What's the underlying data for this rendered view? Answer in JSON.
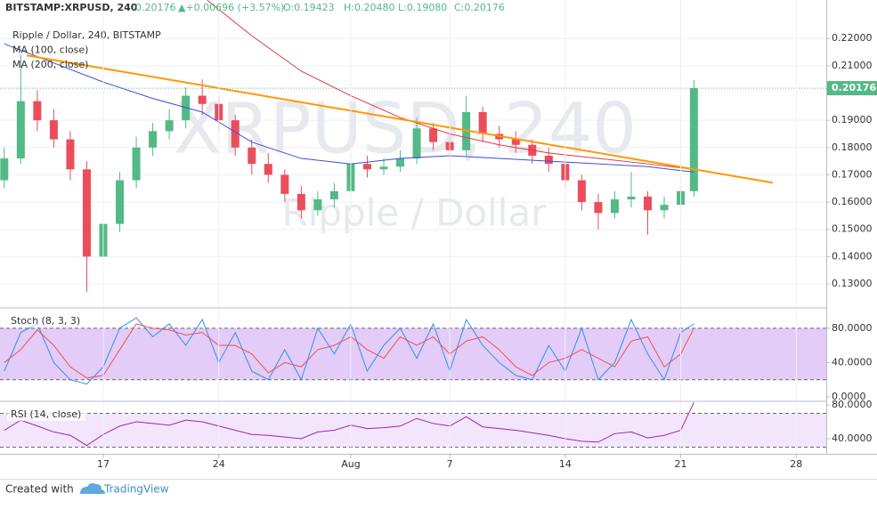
{
  "header": {
    "symbol": "BITSTAMP:XRPUSD, 240",
    "last": "0.20176",
    "change": "▲+0.00696 (+3.57%)",
    "open": "O:0.19423",
    "high": "H:0.20480",
    "low": "L:0.19080",
    "close": "C:0.20176"
  },
  "footer": {
    "created": "Created with",
    "brand": "TradingView"
  },
  "chart_data": [
    {
      "type": "candlestick",
      "legend_title": "Ripple / Dollar, 240, BITSTAMP",
      "watermark": [
        "XRPUSD, 240",
        "Ripple / Dollar"
      ],
      "up_color": "#53b987",
      "down_color": "#eb4d5c",
      "grid": true,
      "xlim": [
        10.74,
        60.82
      ],
      "ylim": [
        0.1212,
        0.2341
      ],
      "yticks": [
        {
          "value": 0.13,
          "label": "0.13000"
        },
        {
          "value": 0.14,
          "label": "0.14000"
        },
        {
          "value": 0.15,
          "label": "0.15000"
        },
        {
          "value": 0.16,
          "label": "0.16000"
        },
        {
          "value": 0.17,
          "label": "0.17000"
        },
        {
          "value": 0.18,
          "label": "0.18000"
        },
        {
          "value": 0.19,
          "label": "0.19000"
        },
        {
          "value": 0.21,
          "label": "0.21000"
        },
        {
          "value": 0.22,
          "label": "0.22000"
        }
      ],
      "x": [
        11,
        12,
        13,
        14,
        15,
        16,
        17,
        18,
        19,
        20,
        21,
        22,
        23,
        24,
        25,
        26,
        27,
        28,
        29,
        30,
        31,
        32,
        33,
        34,
        35,
        36,
        37,
        38,
        39,
        40,
        41,
        42,
        43,
        44,
        45,
        46,
        47,
        48,
        49,
        50,
        51,
        52,
        52.8
      ],
      "open": [
        0.168,
        0.176,
        0.197,
        0.19,
        0.183,
        0.172,
        0.14,
        0.152,
        0.168,
        0.18,
        0.186,
        0.19,
        0.199,
        0.196,
        0.19,
        0.18,
        0.174,
        0.17,
        0.163,
        0.157,
        0.161,
        0.164,
        0.174,
        0.172,
        0.173,
        0.176,
        0.187,
        0.182,
        0.179,
        0.193,
        0.185,
        0.183,
        0.181,
        0.177,
        0.174,
        0.168,
        0.16,
        0.156,
        0.161,
        0.162,
        0.157,
        0.159,
        0.164
      ],
      "high": [
        0.18,
        0.214,
        0.201,
        0.194,
        0.186,
        0.175,
        0.156,
        0.171,
        0.184,
        0.189,
        0.194,
        0.202,
        0.205,
        0.199,
        0.192,
        0.183,
        0.178,
        0.172,
        0.166,
        0.164,
        0.167,
        0.178,
        0.177,
        0.176,
        0.179,
        0.191,
        0.189,
        0.185,
        0.199,
        0.195,
        0.188,
        0.186,
        0.183,
        0.18,
        0.177,
        0.17,
        0.163,
        0.164,
        0.171,
        0.164,
        0.162,
        0.166,
        0.2048
      ],
      "low": [
        0.165,
        0.174,
        0.186,
        0.18,
        0.168,
        0.127,
        0.136,
        0.149,
        0.165,
        0.177,
        0.183,
        0.187,
        0.192,
        0.186,
        0.177,
        0.17,
        0.167,
        0.16,
        0.154,
        0.155,
        0.158,
        0.162,
        0.169,
        0.17,
        0.171,
        0.174,
        0.179,
        0.176,
        0.177,
        0.182,
        0.18,
        0.178,
        0.174,
        0.171,
        0.165,
        0.157,
        0.15,
        0.154,
        0.158,
        0.148,
        0.154,
        0.157,
        0.162
      ],
      "close": [
        0.176,
        0.197,
        0.19,
        0.183,
        0.172,
        0.14,
        0.152,
        0.168,
        0.18,
        0.186,
        0.19,
        0.199,
        0.196,
        0.19,
        0.18,
        0.174,
        0.17,
        0.163,
        0.157,
        0.161,
        0.164,
        0.174,
        0.172,
        0.173,
        0.176,
        0.187,
        0.182,
        0.179,
        0.193,
        0.185,
        0.183,
        0.181,
        0.177,
        0.174,
        0.168,
        0.16,
        0.156,
        0.161,
        0.162,
        0.157,
        0.159,
        0.164,
        0.20176
      ],
      "lines": [
        {
          "name": "MA (100, close)",
          "color": "#3b4fd8",
          "x": [
            11,
            14,
            17,
            20,
            23,
            26,
            29,
            32,
            35,
            38,
            41,
            44,
            47,
            50,
            52.8
          ],
          "values": [
            0.218,
            0.211,
            0.204,
            0.198,
            0.193,
            0.182,
            0.176,
            0.174,
            0.176,
            0.177,
            0.176,
            0.175,
            0.174,
            0.173,
            0.171
          ]
        },
        {
          "name": "MA (200, close)",
          "color": "#e0393e",
          "x": [
            23.3,
            26,
            29,
            32,
            35,
            38,
            41,
            44,
            47,
            50,
            52.8
          ],
          "values": [
            0.234,
            0.221,
            0.208,
            0.199,
            0.191,
            0.185,
            0.181,
            0.178,
            0.176,
            0.174,
            0.172
          ]
        }
      ],
      "trendline": {
        "color": "#ff9800",
        "x": [
          12.36,
          57.58
        ],
        "values": [
          0.2138,
          0.1671
        ]
      },
      "last_price": 0.20176
    },
    {
      "type": "line",
      "title": "Stoch (8, 3, 3)",
      "xlim": [
        10.74,
        60.82
      ],
      "ylim": [
        -4.1,
        102.6
      ],
      "band": [
        20,
        80
      ],
      "band_color": "#e3ccf8",
      "yticks": [
        {
          "value": 0,
          "label": "0.0000"
        },
        {
          "value": 40,
          "label": "40.0000"
        },
        {
          "value": 80,
          "label": "80.0000"
        }
      ],
      "x": [
        11,
        12,
        13,
        14,
        15,
        16,
        17,
        18,
        19,
        20,
        21,
        22,
        23,
        24,
        25,
        26,
        27,
        28,
        29,
        30,
        31,
        32,
        33,
        34,
        35,
        36,
        37,
        38,
        39,
        40,
        41,
        42,
        43,
        44,
        45,
        46,
        47,
        48,
        49,
        50,
        51,
        52,
        52.8
      ],
      "series": [
        {
          "color": "#2f8ff0",
          "values": [
            30,
            75,
            85,
            40,
            20,
            15,
            35,
            80,
            92,
            70,
            85,
            60,
            90,
            40,
            75,
            30,
            20,
            55,
            20,
            80,
            50,
            85,
            30,
            60,
            80,
            45,
            85,
            30,
            90,
            60,
            40,
            25,
            20,
            60,
            30,
            80,
            20,
            40,
            90,
            50,
            20,
            75,
            85
          ]
        },
        {
          "color": "#f0524f",
          "values": [
            40,
            55,
            78,
            60,
            35,
            22,
            25,
            55,
            85,
            80,
            78,
            72,
            75,
            60,
            60,
            50,
            28,
            40,
            35,
            55,
            60,
            70,
            55,
            45,
            70,
            60,
            70,
            50,
            65,
            70,
            55,
            35,
            25,
            40,
            45,
            55,
            45,
            35,
            65,
            70,
            35,
            50,
            80
          ]
        }
      ]
    },
    {
      "type": "line",
      "title": "RSI (14, close)",
      "xlim": [
        10.74,
        60.82
      ],
      "ylim": [
        22.1,
        83.2
      ],
      "band": [
        30,
        70
      ],
      "band_color": "#f3e6fc",
      "yticks": [
        {
          "value": 40,
          "label": "40.0000"
        },
        {
          "value": 80,
          "label": "80.0000"
        }
      ],
      "xticks": [
        17,
        24,
        {
          "value": 32,
          "label": "Aug"
        },
        {
          "value": 38,
          "label": "7"
        },
        {
          "value": 45,
          "label": "14"
        },
        {
          "value": 52,
          "label": "21"
        },
        {
          "value": 59,
          "label": "28"
        }
      ],
      "x": [
        11,
        12,
        13,
        14,
        15,
        16,
        17,
        18,
        19,
        20,
        21,
        22,
        23,
        24,
        25,
        26,
        27,
        28,
        29,
        30,
        31,
        32,
        33,
        34,
        35,
        36,
        37,
        38,
        39,
        40,
        41,
        42,
        43,
        44,
        45,
        46,
        47,
        48,
        49,
        50,
        51,
        52,
        52.8
      ],
      "series": [
        {
          "color": "#9c27b0",
          "values": [
            50,
            62,
            55,
            48,
            44,
            32,
            45,
            55,
            60,
            58,
            56,
            62,
            60,
            55,
            50,
            45,
            44,
            42,
            40,
            48,
            50,
            56,
            52,
            53,
            55,
            64,
            58,
            55,
            66,
            54,
            52,
            50,
            47,
            44,
            40,
            37,
            36,
            46,
            48,
            41,
            44,
            50,
            83
          ]
        }
      ]
    }
  ]
}
